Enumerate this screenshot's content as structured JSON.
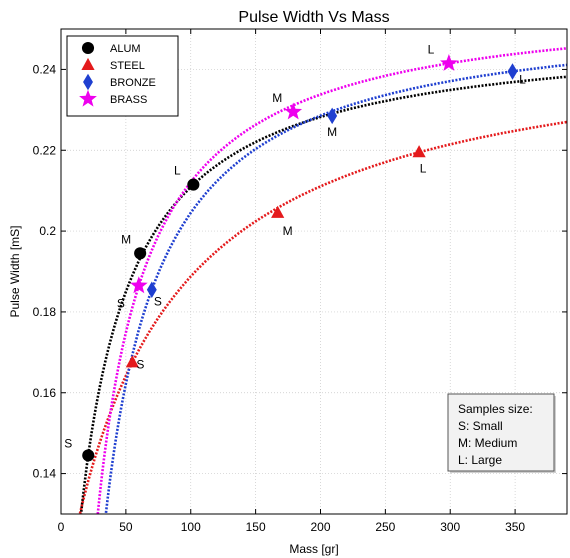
{
  "chart_data": {
    "type": "line",
    "title": "Pulse Width Vs Mass",
    "xlabel": "Mass  [gr]",
    "ylabel": "Pulse Width  [mS]",
    "xlim": [
      0,
      390
    ],
    "ylim": [
      0.13,
      0.25
    ],
    "xticks": [
      0,
      50,
      100,
      150,
      200,
      250,
      300,
      350
    ],
    "yticks": [
      0.14,
      0.16,
      0.18,
      0.2,
      0.22,
      0.24
    ],
    "xtick_labels": [
      "0",
      "50",
      "100",
      "150",
      "200",
      "250",
      "300",
      "350"
    ],
    "ytick_labels": [
      "0.14",
      "0.16",
      "0.18",
      "0.2",
      "0.22",
      "0.24"
    ],
    "grid": true,
    "legend_position": "top-left",
    "series": [
      {
        "name": "ALUM",
        "color": "#000000",
        "marker": "circle",
        "points": [
          {
            "x": 21,
            "y": 0.1445,
            "label": "S"
          },
          {
            "x": 61,
            "y": 0.1945,
            "label": "M"
          },
          {
            "x": 102,
            "y": 0.2115,
            "label": "L"
          }
        ],
        "fit": {
          "a": 0.25,
          "b": 4.7,
          "c": 0.1
        }
      },
      {
        "name": "STEEL",
        "color": "#e41a1c",
        "marker": "triangle",
        "points": [
          {
            "x": 55,
            "y": 0.1675,
            "label": "S"
          },
          {
            "x": 167,
            "y": 0.2045,
            "label": "M"
          },
          {
            "x": 276,
            "y": 0.2195,
            "label": "L"
          }
        ],
        "fit": {
          "a": 0.25,
          "b": 7.61,
          "c": 0.1
        }
      },
      {
        "name": "BRONZE",
        "color": "#1f3fd0",
        "marker": "diamond",
        "points": [
          {
            "x": 70,
            "y": 0.1855,
            "label": "S"
          },
          {
            "x": 209,
            "y": 0.2285,
            "label": "M"
          },
          {
            "x": 348,
            "y": 0.2395,
            "label": "L"
          }
        ],
        "fit": {
          "a": 0.255,
          "b": 7.19,
          "c": 0.1
        }
      },
      {
        "name": "BRASS",
        "color": "#ee00ee",
        "marker": "star",
        "points": [
          {
            "x": 60,
            "y": 0.1865,
            "label": "S"
          },
          {
            "x": 179,
            "y": 0.2295,
            "label": "M"
          },
          {
            "x": 299,
            "y": 0.2415,
            "label": "L"
          }
        ],
        "fit": {
          "a": 0.258,
          "b": 6.64,
          "c": 0.1
        }
      }
    ],
    "annotation": {
      "lines": [
        "Samples size:",
        "S: Small",
        "M: Medium",
        "L: Large"
      ]
    }
  }
}
